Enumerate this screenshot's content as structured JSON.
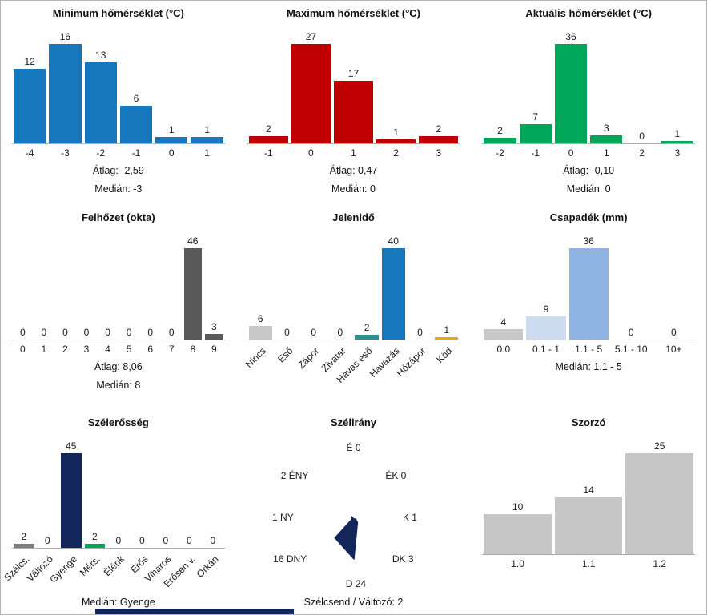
{
  "page": {
    "background": "#ffffff",
    "border_color": "#b3b3b3",
    "accent_navy": "#13265a"
  },
  "chart_data": [
    {
      "type": "bar",
      "title": "Minimum hőmérséklet (°C)",
      "categories": [
        "-4",
        "-3",
        "-2",
        "-1",
        "0",
        "1"
      ],
      "values": [
        12,
        16,
        13,
        6,
        1,
        1
      ],
      "color": "#1777bd",
      "stats": [
        "Átlag: -2,59",
        "Medián: -3"
      ]
    },
    {
      "type": "bar",
      "title": "Maximum hőmérséklet (°C)",
      "categories": [
        "-1",
        "0",
        "1",
        "2",
        "3"
      ],
      "values": [
        2,
        27,
        17,
        1,
        2
      ],
      "color": "#c00000",
      "stats": [
        "Átlag: 0,47",
        "Medián: 0"
      ]
    },
    {
      "type": "bar",
      "title": "Aktuális hőmérséklet (°C)",
      "categories": [
        "-2",
        "-1",
        "0",
        "1",
        "2",
        "3"
      ],
      "values": [
        2,
        7,
        36,
        3,
        0,
        1
      ],
      "color": "#00a758",
      "stats": [
        "Átlag: -0,10",
        "Medián: 0"
      ]
    },
    {
      "type": "bar",
      "title": "Felhőzet (okta)",
      "categories": [
        "0",
        "1",
        "2",
        "3",
        "4",
        "5",
        "6",
        "7",
        "8",
        "9"
      ],
      "values": [
        0,
        0,
        0,
        0,
        0,
        0,
        0,
        0,
        46,
        3
      ],
      "color": "#595959",
      "stats": [
        "Átlag: 8,06",
        "Medián: 8"
      ]
    },
    {
      "type": "bar",
      "title": "Jelenidő",
      "categories": [
        "Nincs",
        "Eső",
        "Zápor",
        "Zivatar",
        "Havas eső",
        "Havazás",
        "Hózápor",
        "Köd"
      ],
      "values": [
        6,
        0,
        0,
        0,
        2,
        40,
        0,
        1
      ],
      "colors": [
        "#c8c8c8",
        "#c8c8c8",
        "#c8c8c8",
        "#c8c8c8",
        "#2f8e8e",
        "#1777bd",
        "#c8c8c8",
        "#eaaa00"
      ],
      "stats": []
    },
    {
      "type": "bar",
      "title": "Csapadék (mm)",
      "categories": [
        "0.0",
        "0.1 - 1",
        "1.1 - 5",
        "5.1 - 10",
        "10+"
      ],
      "values": [
        4,
        9,
        36,
        0,
        0
      ],
      "colors": [
        "#c8c8c8",
        "#cddcf1",
        "#8fb4e4",
        "#8fb4e4",
        "#8fb4e4"
      ],
      "stats": [
        "Medián: 1.1 - 5"
      ]
    },
    {
      "type": "bar",
      "title": "Szélerősség",
      "categories": [
        "Szélcs.",
        "Változó",
        "Gyenge",
        "Mérs.",
        "Élénk",
        "Erős",
        "Viharos",
        "Erősen v.",
        "Orkán"
      ],
      "values": [
        2,
        0,
        45,
        2,
        0,
        0,
        0,
        0,
        0
      ],
      "colors": [
        "#7f7f7f",
        "#7f7f7f",
        "#13265a",
        "#00a758",
        "#7f7f7f",
        "#7f7f7f",
        "#7f7f7f",
        "#7f7f7f",
        "#7f7f7f"
      ],
      "stats": [
        "Medián: Gyenge"
      ]
    },
    {
      "type": "windrose",
      "title": "Szélirány",
      "directions": [
        "É",
        "ÉK",
        "K",
        "DK",
        "D",
        "DNY",
        "NY",
        "ÉNY"
      ],
      "values": [
        0,
        0,
        1,
        3,
        24,
        16,
        1,
        2
      ],
      "labels": [
        "É 0",
        "ÉK 0",
        "K 1",
        "DK 3",
        "D 24",
        "16 DNY",
        "1 NY",
        "2 ÉNY"
      ],
      "note": "Szélcsend / Változó: 2",
      "color": "#13265a"
    },
    {
      "type": "bar",
      "title": "Szorzó",
      "categories": [
        "1.0",
        "1.1",
        "1.2"
      ],
      "values": [
        10,
        14,
        25
      ],
      "color": "#c6c6c6",
      "stats": []
    }
  ]
}
